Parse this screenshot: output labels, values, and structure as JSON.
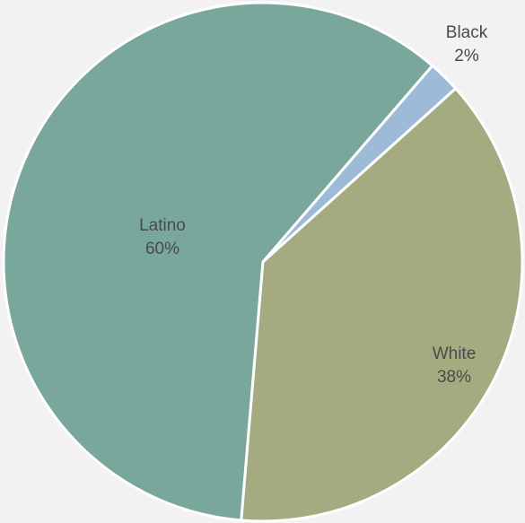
{
  "chart_data": {
    "type": "pie",
    "title": "",
    "slices": [
      {
        "label": "Latino",
        "value": 60,
        "value_label": "60%",
        "color": "#79a79c"
      },
      {
        "label": "Black",
        "value": 2,
        "value_label": "2%",
        "color": "#9dbbd8"
      },
      {
        "label": "White",
        "value": 38,
        "value_label": "38%",
        "color": "#a4ab80"
      }
    ],
    "background": "#f2f2f2",
    "label_color": "#4a4a4a"
  }
}
